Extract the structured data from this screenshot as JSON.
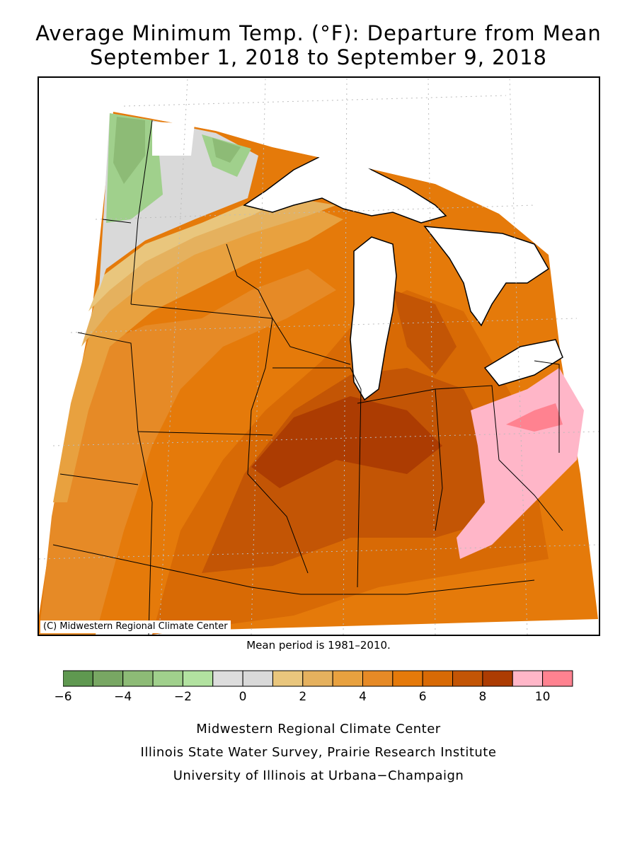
{
  "title": {
    "line1": "Average Minimum Temp. (°F): Departure from Mean",
    "line2": "September 1, 2018 to September 9, 2018"
  },
  "map": {
    "copyright": "(C) Midwestern Regional Climate Center"
  },
  "mean_period": "Mean period is 1981–2010.",
  "legend": {
    "bins": [
      {
        "min": -6,
        "max": -5,
        "color": "#5f9850"
      },
      {
        "min": -5,
        "max": -4,
        "color": "#78a763"
      },
      {
        "min": -4,
        "max": -3,
        "color": "#8dbb76"
      },
      {
        "min": -3,
        "max": -2,
        "color": "#a0d08c"
      },
      {
        "min": -2,
        "max": -1,
        "color": "#b2e2a0"
      },
      {
        "min": -1,
        "max": 0,
        "color": "#dddddd"
      },
      {
        "min": 0,
        "max": 1,
        "color": "#d9d9d9"
      },
      {
        "min": 1,
        "max": 2,
        "color": "#e9c67d"
      },
      {
        "min": 2,
        "max": 3,
        "color": "#e5b15e"
      },
      {
        "min": 3,
        "max": 4,
        "color": "#e8a13f"
      },
      {
        "min": 4,
        "max": 5,
        "color": "#e68a26"
      },
      {
        "min": 5,
        "max": 6,
        "color": "#e57a0a"
      },
      {
        "min": 6,
        "max": 7,
        "color": "#d86a05"
      },
      {
        "min": 7,
        "max": 8,
        "color": "#c35505"
      },
      {
        "min": 8,
        "max": 9,
        "color": "#ac3c02"
      },
      {
        "min": 9,
        "max": 10,
        "color": "#ffb6c8"
      },
      {
        "min": 10,
        "max": 11,
        "color": "#ff8290"
      }
    ],
    "tick_labels": [
      "−6",
      "−4",
      "−2",
      "0",
      "2",
      "4",
      "6",
      "8",
      "10"
    ]
  },
  "footer": {
    "line1": "Midwestern Regional Climate Center",
    "line2": "Illinois State Water Survey, Prairie Research Institute",
    "line3": "University of Illinois at Urbana−Champaign"
  }
}
